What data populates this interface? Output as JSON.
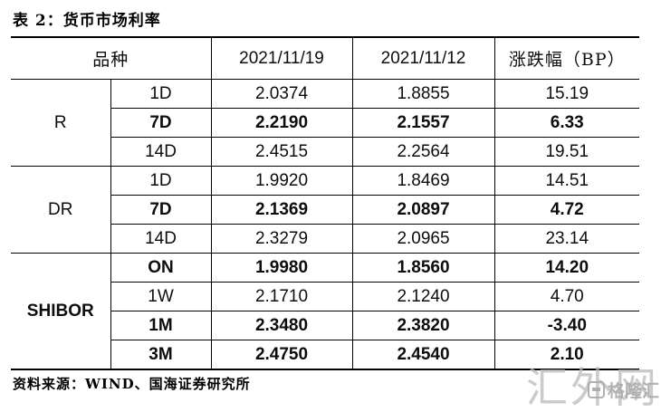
{
  "title": "表 2：货币市场利率",
  "table": {
    "headers": [
      "品种",
      "2021/11/19",
      "2021/11/12",
      "涨跌幅（BP）"
    ],
    "groups": [
      {
        "name": "R",
        "rows": [
          {
            "tenor": "1D",
            "v1": "2.0374",
            "v2": "1.8855",
            "chg": "15.19",
            "bold": false
          },
          {
            "tenor": "7D",
            "v1": "2.2190",
            "v2": "2.1557",
            "chg": "6.33",
            "bold": true
          },
          {
            "tenor": "14D",
            "v1": "2.4515",
            "v2": "2.2564",
            "chg": "19.51",
            "bold": false
          }
        ]
      },
      {
        "name": "DR",
        "rows": [
          {
            "tenor": "1D",
            "v1": "1.9920",
            "v2": "1.8469",
            "chg": "14.51",
            "bold": false
          },
          {
            "tenor": "7D",
            "v1": "2.1369",
            "v2": "2.0897",
            "chg": "4.72",
            "bold": true
          },
          {
            "tenor": "14D",
            "v1": "2.3279",
            "v2": "2.0965",
            "chg": "23.14",
            "bold": false
          }
        ]
      },
      {
        "name": "SHIBOR",
        "rows": [
          {
            "tenor": "ON",
            "v1": "1.9980",
            "v2": "1.8560",
            "chg": "14.20",
            "bold": true
          },
          {
            "tenor": "1W",
            "v1": "2.1710",
            "v2": "2.1240",
            "chg": "4.70",
            "bold": false
          },
          {
            "tenor": "1M",
            "v1": "2.3480",
            "v2": "2.3820",
            "chg": "-3.40",
            "bold": true
          },
          {
            "tenor": "3M",
            "v1": "2.4750",
            "v2": "2.4540",
            "chg": "2.10",
            "bold": true
          }
        ]
      }
    ]
  },
  "source": "资料来源：WIND、国海证券研究所",
  "watermark": {
    "text": "汇外网",
    "logo_text": "格隆汇",
    "color": "#b9b9b9"
  },
  "colors": {
    "border": "#000000",
    "text": "#0d0d0d",
    "background": "#ffffff"
  }
}
